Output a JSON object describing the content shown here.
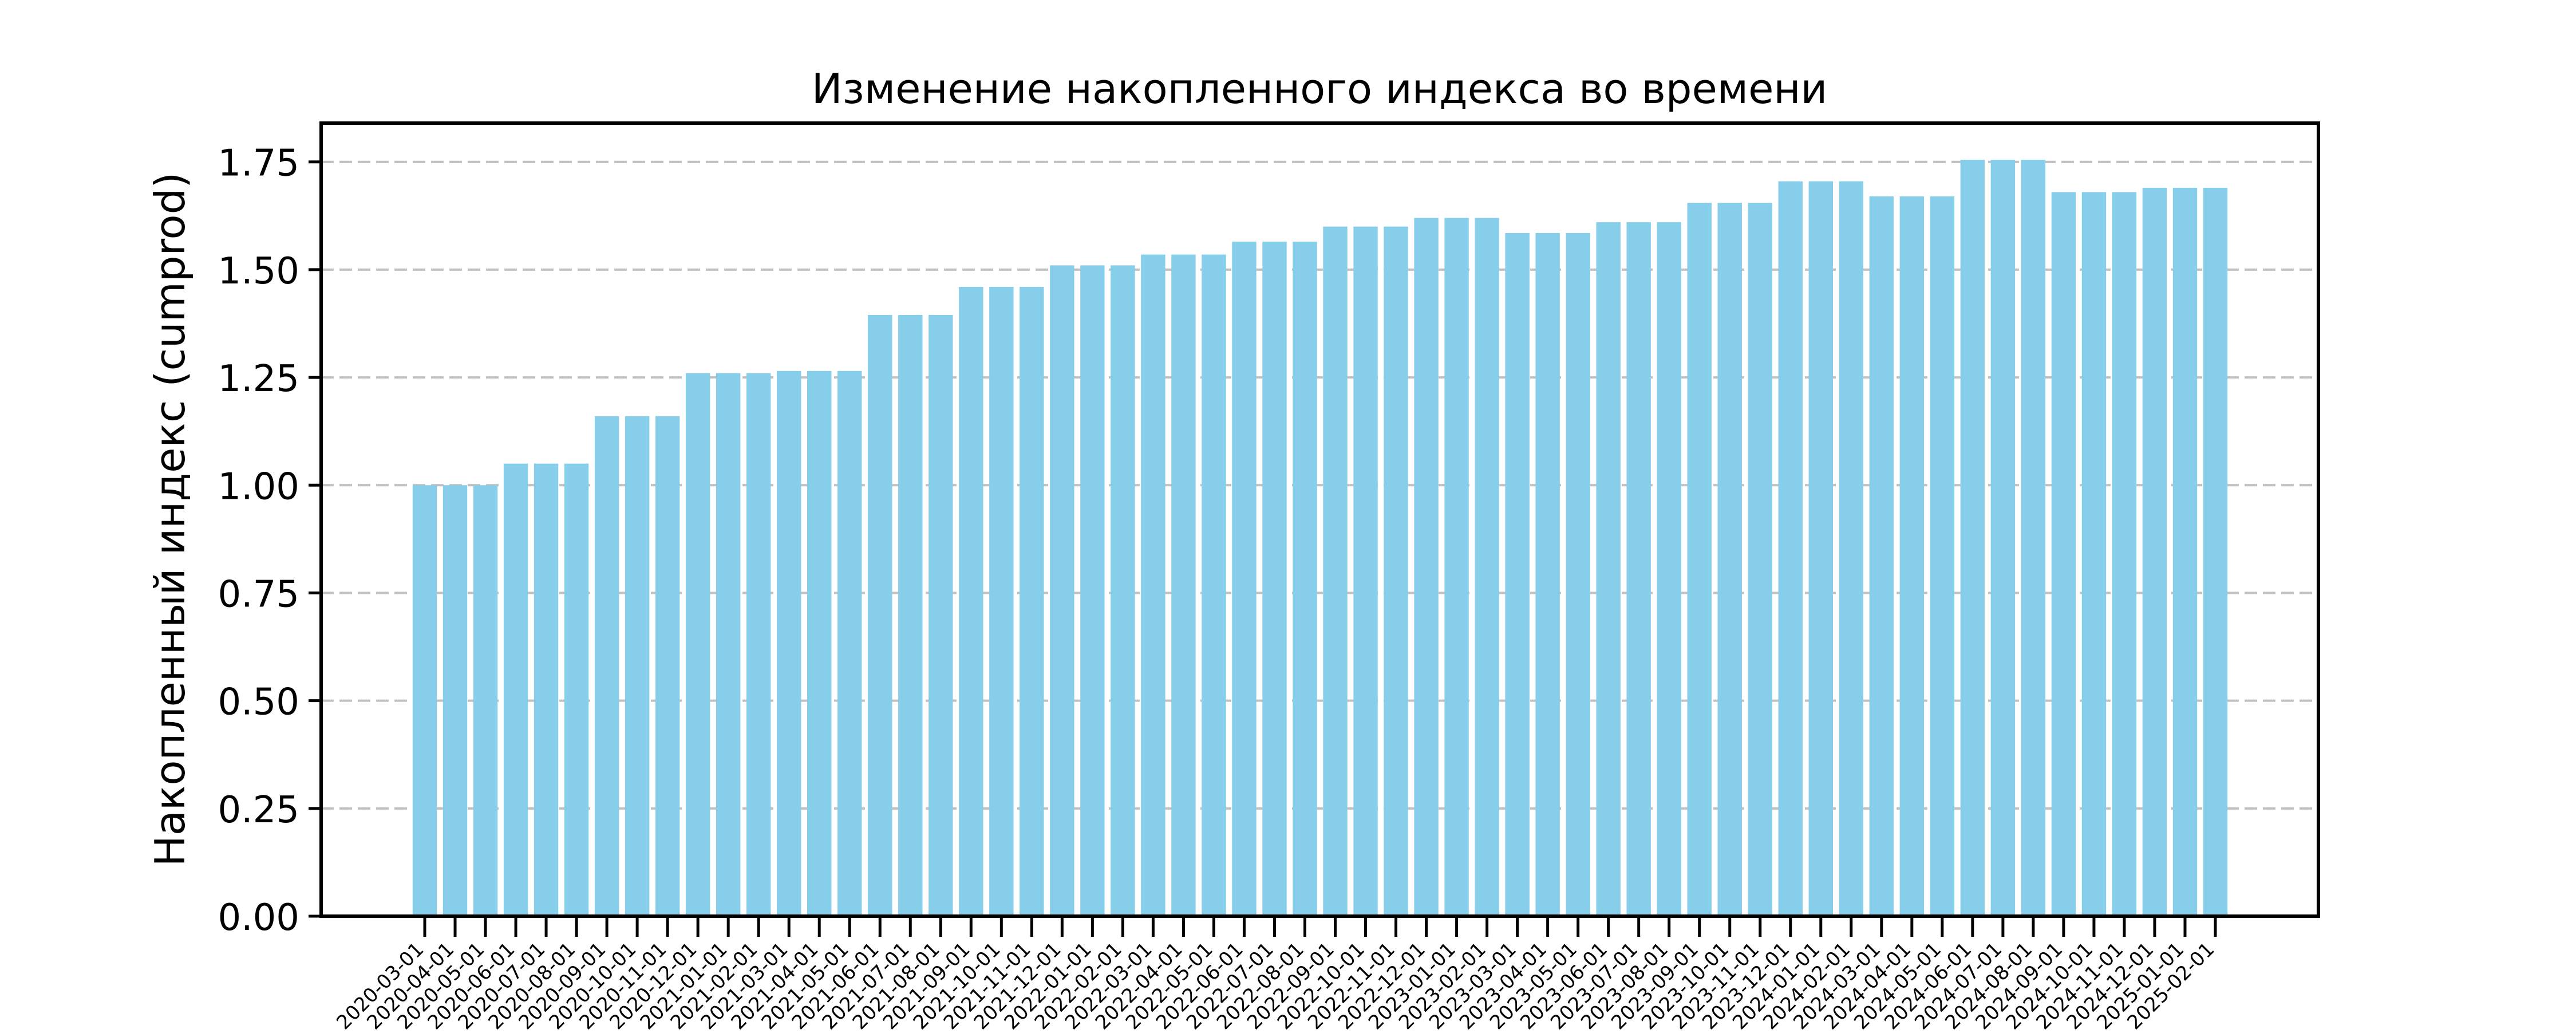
{
  "chart_data": {
    "type": "bar",
    "title": "Изменение накопленного индекса во времени",
    "xlabel": "",
    "ylabel": "Накопленный индекс (cumprod)",
    "ylim": [
      0,
      1.84
    ],
    "yticks": [
      0.0,
      0.25,
      0.5,
      0.75,
      1.0,
      1.25,
      1.5,
      1.75
    ],
    "ytick_labels": [
      "0.00",
      "0.25",
      "0.50",
      "0.75",
      "1.00",
      "1.25",
      "1.50",
      "1.75"
    ],
    "grid": "y-dashed",
    "legend": "none",
    "bar_color": "#87CEEB",
    "grid_color": "#c0c0c0",
    "categories": [
      "2020-03-01",
      "2020-04-01",
      "2020-05-01",
      "2020-06-01",
      "2020-07-01",
      "2020-08-01",
      "2020-09-01",
      "2020-10-01",
      "2020-11-01",
      "2020-12-01",
      "2021-01-01",
      "2021-02-01",
      "2021-03-01",
      "2021-04-01",
      "2021-05-01",
      "2021-06-01",
      "2021-07-01",
      "2021-08-01",
      "2021-09-01",
      "2021-10-01",
      "2021-11-01",
      "2021-12-01",
      "2022-01-01",
      "2022-02-01",
      "2022-03-01",
      "2022-04-01",
      "2022-05-01",
      "2022-06-01",
      "2022-07-01",
      "2022-08-01",
      "2022-09-01",
      "2022-10-01",
      "2022-11-01",
      "2022-12-01",
      "2023-01-01",
      "2023-02-01",
      "2023-03-01",
      "2023-04-01",
      "2023-05-01",
      "2023-06-01",
      "2023-07-01",
      "2023-08-01",
      "2023-09-01",
      "2023-10-01",
      "2023-11-01",
      "2023-12-01",
      "2024-01-01",
      "2024-02-01",
      "2024-03-01",
      "2024-04-01",
      "2024-05-01",
      "2024-06-01",
      "2024-07-01",
      "2024-08-01",
      "2024-09-01",
      "2024-10-01",
      "2024-11-01",
      "2024-12-01",
      "2025-01-01",
      "2025-02-01"
    ],
    "values": [
      1.0,
      1.0,
      1.0,
      1.05,
      1.05,
      1.05,
      1.16,
      1.16,
      1.16,
      1.26,
      1.26,
      1.26,
      1.265,
      1.265,
      1.265,
      1.395,
      1.395,
      1.395,
      1.46,
      1.46,
      1.46,
      1.51,
      1.51,
      1.51,
      1.535,
      1.535,
      1.535,
      1.565,
      1.565,
      1.565,
      1.6,
      1.6,
      1.6,
      1.62,
      1.62,
      1.62,
      1.585,
      1.585,
      1.585,
      1.61,
      1.61,
      1.61,
      1.655,
      1.655,
      1.655,
      1.705,
      1.705,
      1.705,
      1.67,
      1.67,
      1.67,
      1.755,
      1.755,
      1.755,
      1.68,
      1.68,
      1.68,
      1.69,
      1.69,
      1.69
    ]
  }
}
